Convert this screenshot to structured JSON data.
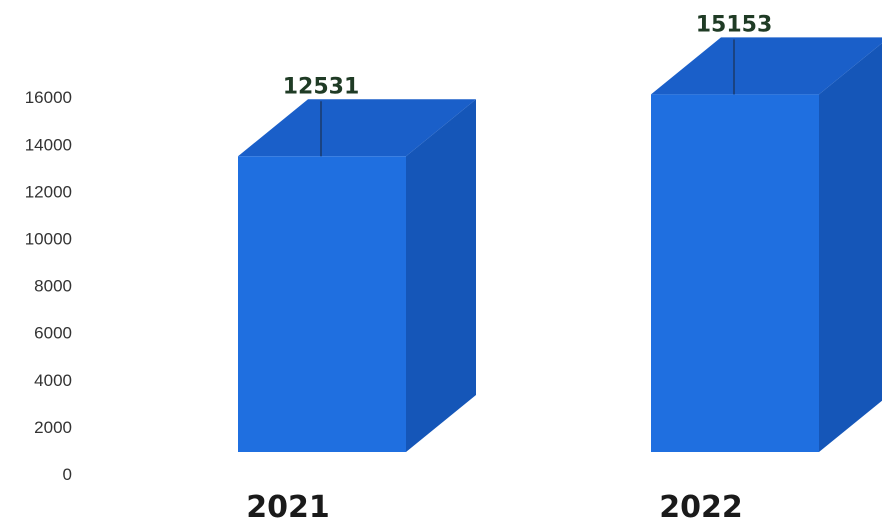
{
  "chart_data": {
    "type": "bar",
    "title": "",
    "xlabel": "",
    "ylabel": "",
    "categories": [
      "2021",
      "2022"
    ],
    "values": [
      12531,
      15153
    ],
    "ylim": [
      0,
      16000
    ],
    "yticks": [
      "0",
      "2000",
      "4000",
      "6000",
      "8000",
      "10000",
      "12000",
      "14000",
      "16000"
    ],
    "data_labels": [
      "12531",
      "15153"
    ],
    "style": "3d-column",
    "grid": false,
    "legend": "none",
    "colors": {
      "bar_front": "#1f6fe0",
      "bar_side": "#1556b8",
      "bar_top": "#1a5fc9",
      "data_label": "#1f3b25",
      "tick_text": "#333333"
    }
  }
}
